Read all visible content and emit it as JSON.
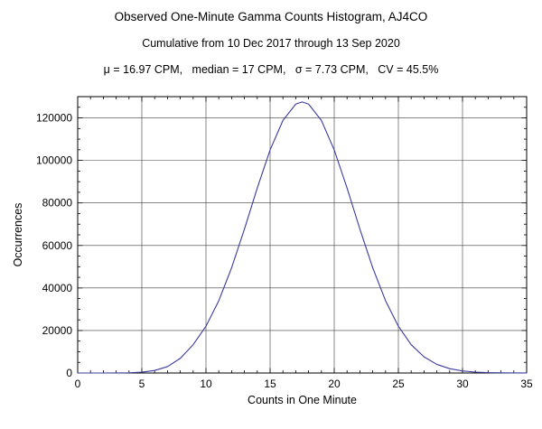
{
  "chart_data": {
    "type": "line",
    "title": "Observed One-Minute Gamma Counts Histogram, AJ4CO",
    "subtitle": "Cumulative from 10 Dec 2017 through 13 Sep 2020",
    "stats_line": "μ = 16.97 CPM,   median = 17 CPM,   σ = 7.73 CPM,   CV = 45.5%",
    "stats": {
      "mu_cpm": 16.97,
      "median_cpm": 17,
      "sigma_cpm": 7.73,
      "cv_percent": 45.5
    },
    "xlabel": "Counts in One Minute",
    "ylabel": "Occurrences",
    "xlim": [
      0,
      35
    ],
    "ylim": [
      0,
      130000
    ],
    "xticks": [
      0,
      5,
      10,
      15,
      20,
      25,
      30,
      35
    ],
    "yticks": [
      0,
      20000,
      40000,
      60000,
      80000,
      100000,
      120000
    ],
    "x_minor_step": 1,
    "y_minor_step": 5000,
    "grid": true,
    "grid_color": "#3c3c3c",
    "frame_color": "#000000",
    "line_color": "#3b3b9e",
    "x": [
      0,
      1,
      2,
      3,
      4,
      5,
      6,
      7,
      8,
      9,
      10,
      11,
      12,
      13,
      14,
      15,
      16,
      17,
      17.5,
      18,
      19,
      20,
      21,
      22,
      23,
      24,
      25,
      26,
      27,
      28,
      29,
      30,
      31,
      32,
      33,
      34,
      35
    ],
    "y": [
      0,
      0,
      0,
      20,
      100,
      400,
      1200,
      3000,
      6900,
      13300,
      22000,
      34000,
      49500,
      67700,
      87000,
      104900,
      118800,
      126500,
      127500,
      126500,
      118800,
      104900,
      87000,
      67700,
      49500,
      34000,
      22000,
      13300,
      7600,
      4070,
      2040,
      965,
      430,
      180,
      70,
      25,
      8
    ]
  }
}
